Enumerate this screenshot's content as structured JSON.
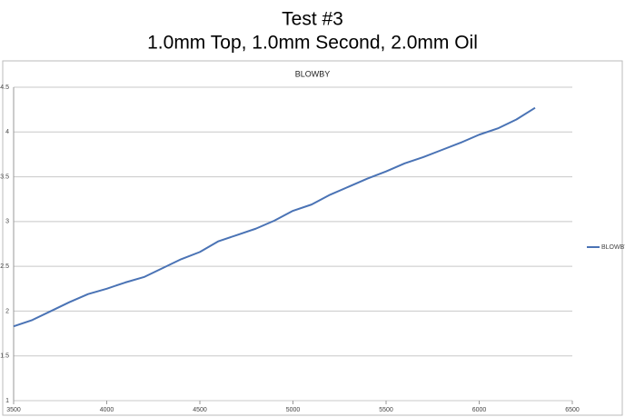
{
  "chart_data": {
    "type": "line",
    "title": "Test #3",
    "subtitle": "1.0mm Top, 1.0mm Second, 2.0mm Oil",
    "chart_title": "BLOWBY",
    "x": [
      3500,
      3600,
      3700,
      3800,
      3900,
      4000,
      4100,
      4200,
      4300,
      4400,
      4500,
      4600,
      4700,
      4800,
      4900,
      5000,
      5100,
      5200,
      5300,
      5400,
      5500,
      5600,
      5700,
      5800,
      5900,
      6000,
      6100,
      6200,
      6300
    ],
    "series": [
      {
        "name": "BLOWBY",
        "color": "#4a73b5",
        "values": [
          1.83,
          1.9,
          2.0,
          2.1,
          2.19,
          2.25,
          2.32,
          2.38,
          2.48,
          2.58,
          2.66,
          2.78,
          2.85,
          2.92,
          3.01,
          3.12,
          3.19,
          3.3,
          3.39,
          3.48,
          3.56,
          3.65,
          3.72,
          3.8,
          3.88,
          3.97,
          4.04,
          4.14,
          4.27
        ]
      }
    ],
    "xlim": [
      3500,
      6500
    ],
    "xticks": [
      3500,
      4000,
      4500,
      5000,
      5500,
      6000,
      6500
    ],
    "ylim": [
      1,
      4.5
    ],
    "yticks": [
      1,
      1.5,
      2,
      2.5,
      3,
      3.5,
      4,
      4.5
    ],
    "grid": true,
    "legend": "right"
  }
}
